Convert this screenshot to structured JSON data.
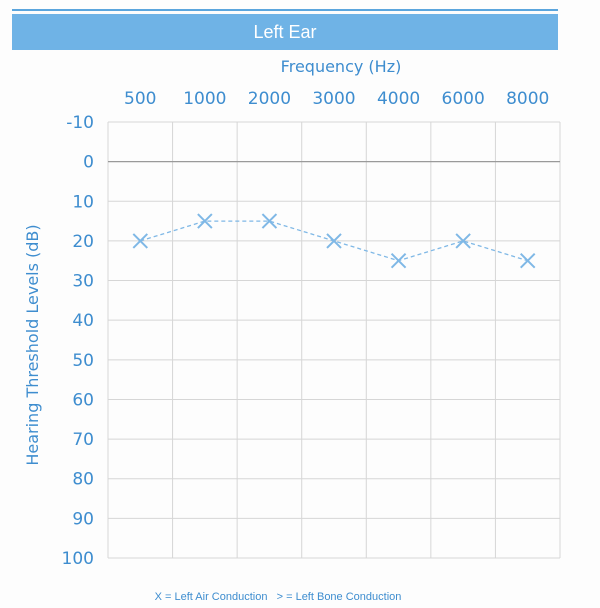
{
  "chart_data": {
    "type": "line",
    "title": "Left Ear",
    "xlabel": "Frequency (Hz)",
    "ylabel": "Hearing Threshold Levels (dB)",
    "categories": [
      "500",
      "1000",
      "2000",
      "3000",
      "4000",
      "6000",
      "8000"
    ],
    "y_ticks": [
      "-10",
      "0",
      "10",
      "20",
      "30",
      "40",
      "50",
      "60",
      "70",
      "80",
      "90",
      "100"
    ],
    "ylim": [
      -10,
      100
    ],
    "y_inverted": true,
    "x_axis_position": "top",
    "grid": true,
    "series": [
      {
        "name": "Left Air Conduction",
        "marker": "X",
        "line_style": "dashed",
        "values": [
          20,
          15,
          15,
          20,
          25,
          20,
          25
        ]
      }
    ],
    "legend": {
      "placement": "bottom",
      "text": "X = Left Air Conduction   > = Left Bone Conduction"
    },
    "colors": {
      "title_band": "#6fb3e6",
      "text": "#3e8dcf",
      "grid": "#d6d6d6",
      "series": "#7fb8e6",
      "zero_line": "#9a9a9a"
    }
  }
}
